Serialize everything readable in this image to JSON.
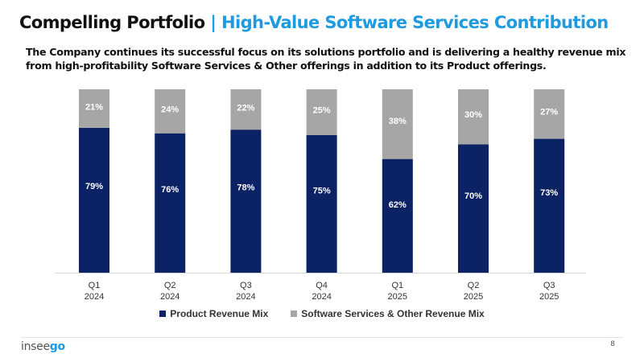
{
  "header": {
    "title_main": "Compelling Portfolio",
    "title_separator": " | ",
    "title_accent": "High-Value Software Services Contribution",
    "subtitle": "The Company continues its successful focus on its solutions portfolio and is delivering a healthy revenue mix from high-profitability Software Services & Other offerings in addition to its Product offerings."
  },
  "colors": {
    "accent": "#1e9be0",
    "product": "#0b2265",
    "software": "#a6a6a6"
  },
  "chart_data": {
    "type": "bar",
    "stacked": true,
    "percent_stacked": true,
    "title": "",
    "xlabel": "",
    "ylabel": "",
    "ylim": [
      0,
      100
    ],
    "grid": false,
    "legend_position": "bottom",
    "categories": [
      {
        "q": "Q1",
        "year": "2024"
      },
      {
        "q": "Q2",
        "year": "2024"
      },
      {
        "q": "Q3",
        "year": "2024"
      },
      {
        "q": "Q4",
        "year": "2024"
      },
      {
        "q": "Q1",
        "year": "2025"
      },
      {
        "q": "Q2",
        "year": "2025"
      },
      {
        "q": "Q3",
        "year": "2025"
      }
    ],
    "series": [
      {
        "name": "Product Revenue Mix",
        "values": [
          79,
          76,
          78,
          75,
          62,
          70,
          73
        ],
        "labels": [
          "79%",
          "76%",
          "78%",
          "75%",
          "62%",
          "70%",
          "73%"
        ]
      },
      {
        "name": "Software Services & Other Revenue Mix",
        "values": [
          21,
          24,
          22,
          25,
          38,
          30,
          27
        ],
        "labels": [
          "21%",
          "24%",
          "22%",
          "25%",
          "38%",
          "30%",
          "27%"
        ]
      }
    ]
  },
  "footer": {
    "logo_part1": "insee",
    "logo_part2": "go",
    "page_number": "8"
  }
}
